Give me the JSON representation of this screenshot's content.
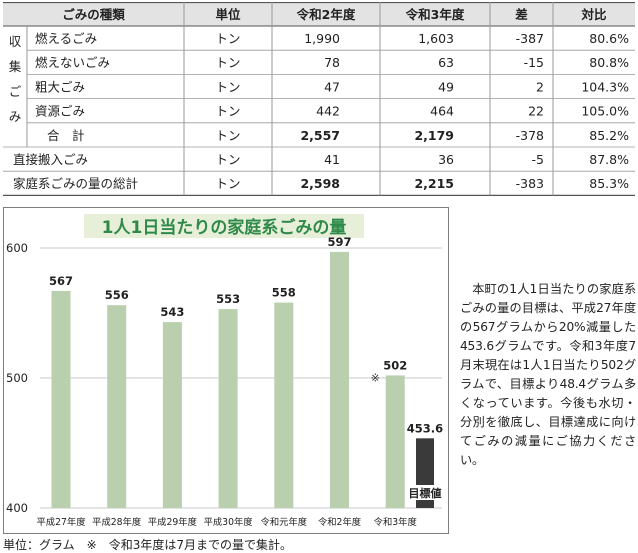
{
  "table": {
    "headers": [
      "ごみの種類",
      "単位",
      "令和2年度",
      "令和3年度",
      "差",
      "対比"
    ],
    "group_label": [
      "収",
      "集",
      "ご",
      "み"
    ],
    "rows": [
      {
        "name": "燃えるごみ",
        "unit": "トン",
        "r2": "1,990",
        "r3": "1,603",
        "diff": "-387",
        "ratio": "80.6%",
        "bold": false
      },
      {
        "name": "燃えないごみ",
        "unit": "トン",
        "r2": "78",
        "r3": "63",
        "diff": "-15",
        "ratio": "80.8%",
        "bold": false
      },
      {
        "name": "粗大ごみ",
        "unit": "トン",
        "r2": "47",
        "r3": "49",
        "diff": "2",
        "ratio": "104.3%",
        "bold": false
      },
      {
        "name": "資源ごみ",
        "unit": "トン",
        "r2": "442",
        "r3": "464",
        "diff": "22",
        "ratio": "105.0%",
        "bold": false
      },
      {
        "name": "合　計",
        "unit": "トン",
        "r2": "2,557",
        "r3": "2,179",
        "diff": "-378",
        "ratio": "85.2%",
        "bold": true
      },
      {
        "name": "直接搬入ごみ",
        "unit": "トン",
        "r2": "41",
        "r3": "36",
        "diff": "-5",
        "ratio": "87.8%",
        "bold": false
      },
      {
        "name": "家庭系ごみの量の総計",
        "unit": "トン",
        "r2": "2,598",
        "r3": "2,215",
        "diff": "-383",
        "ratio": "85.3%",
        "bold": true
      }
    ]
  },
  "chart_data": {
    "type": "bar",
    "title": "1人1日当たりの家庭系ごみの量",
    "categories": [
      "平成27年度",
      "平成28年度",
      "平成29年度",
      "平成30年度",
      "令和元年度",
      "令和2年度",
      "令和3年度"
    ],
    "values": [
      567,
      556,
      543,
      553,
      558,
      597,
      502
    ],
    "target": {
      "label": "目標値",
      "value": 453.6
    },
    "yticks": [
      400,
      500,
      600
    ],
    "ylim": [
      400,
      620
    ],
    "marker_note": "※",
    "colors": {
      "bar": "#b9cfae",
      "target": "#3a3a3a",
      "title": "#2f8a4a",
      "grid": "#c9c9c9"
    }
  },
  "note": "本町の1人1日当たりの家庭系ごみの量の目標は、平成27年度の567グラムから20%減量した453.6グラムです。令和3年度7月末現在は1人1日当たり502グラムで、目標より48.4グラム多くなっています。今後も水切・分別を徹底し、目標達成に向けてごみの減量にご協力ください。",
  "footnote": "単位：グラム　※　令和3年度は7月までの量で集計。"
}
